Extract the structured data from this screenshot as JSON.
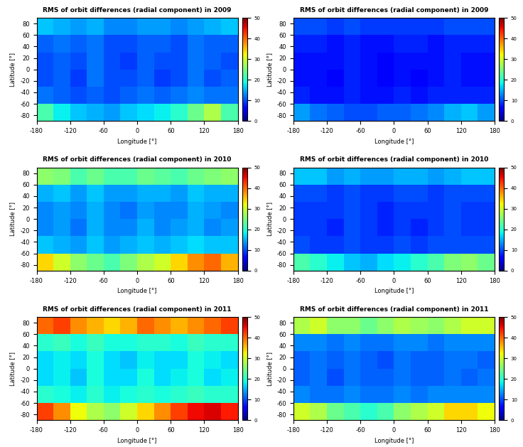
{
  "chart_data": [
    {
      "type": "heatmap",
      "title": "RMS of orbit differences (radial component) in 2009",
      "x_label": "Longitude [°]",
      "y_label": "Latitude [°]",
      "xlim": [
        -180,
        180
      ],
      "xticks": [
        -180,
        -120,
        -60,
        0,
        60,
        120,
        180
      ],
      "ylim": [
        -90,
        90
      ],
      "yticks": [
        -80,
        -60,
        -40,
        -20,
        0,
        20,
        40,
        60,
        80
      ],
      "x_edges": [
        -180,
        -150,
        -120,
        -90,
        -60,
        -30,
        0,
        30,
        60,
        90,
        120,
        150,
        180
      ],
      "y_edges": [
        -90,
        -60,
        -30,
        0,
        30,
        60,
        90
      ],
      "color": "jet",
      "cells": [
        [
          22,
          18,
          16,
          15,
          14,
          16,
          17,
          18,
          20,
          24,
          28,
          22
        ],
        [
          12,
          11,
          10,
          11,
          10,
          11,
          12,
          11,
          12,
          13,
          12,
          12
        ],
        [
          10,
          11,
          9,
          12,
          10,
          10,
          11,
          9,
          10,
          12,
          10,
          11
        ],
        [
          10,
          11,
          10,
          12,
          10,
          9,
          11,
          10,
          10,
          12,
          11,
          10
        ],
        [
          11,
          12,
          11,
          12,
          10,
          10,
          11,
          11,
          10,
          12,
          11,
          11
        ],
        [
          16,
          15,
          14,
          15,
          13,
          13,
          14,
          14,
          13,
          14,
          15,
          16
        ]
      ],
      "colorbar": {
        "range": [
          0,
          50
        ],
        "ticks": [
          0,
          10,
          20,
          30,
          40,
          50
        ]
      }
    },
    {
      "type": "heatmap",
      "title": "RMS of orbit differences (radial component) in 2009",
      "x_label": "Longitude [°]",
      "y_label": "Latitude [°]",
      "xlim": [
        -180,
        180
      ],
      "xticks": [
        -180,
        -120,
        -60,
        0,
        60,
        120,
        180
      ],
      "ylim": [
        -90,
        90
      ],
      "yticks": [
        -80,
        -60,
        -40,
        -20,
        0,
        20,
        40,
        60,
        80
      ],
      "x_edges": [
        -180,
        -150,
        -120,
        -90,
        -60,
        -30,
        0,
        30,
        60,
        90,
        120,
        150,
        180
      ],
      "y_edges": [
        -90,
        -60,
        -30,
        0,
        30,
        60,
        90
      ],
      "color": "jet",
      "cells": [
        [
          14,
          12,
          11,
          10,
          10,
          11,
          11,
          12,
          13,
          15,
          16,
          14
        ],
        [
          8,
          7,
          7,
          8,
          7,
          7,
          8,
          7,
          8,
          8,
          8,
          8
        ],
        [
          7,
          7,
          6,
          8,
          7,
          6,
          7,
          6,
          7,
          8,
          7,
          7
        ],
        [
          7,
          7,
          7,
          8,
          7,
          6,
          7,
          7,
          7,
          8,
          7,
          7
        ],
        [
          8,
          8,
          7,
          8,
          7,
          7,
          8,
          8,
          7,
          8,
          8,
          8
        ],
        [
          10,
          10,
          9,
          10,
          9,
          9,
          9,
          9,
          9,
          10,
          10,
          10
        ]
      ],
      "colorbar": {
        "range": [
          0,
          50
        ],
        "ticks": [
          0,
          10,
          20,
          30,
          40,
          50
        ]
      }
    },
    {
      "type": "heatmap",
      "title": "RMS of orbit differences (radial component) in 2010",
      "x_label": "Longitude [°]",
      "y_label": "Latitude [°]",
      "xlim": [
        -180,
        180
      ],
      "xticks": [
        -180,
        -120,
        -60,
        0,
        60,
        120,
        180
      ],
      "ylim": [
        -90,
        90
      ],
      "yticks": [
        -80,
        -60,
        -40,
        -20,
        0,
        20,
        40,
        60,
        80
      ],
      "x_edges": [
        -180,
        -150,
        -120,
        -90,
        -60,
        -30,
        0,
        30,
        60,
        90,
        120,
        150,
        180
      ],
      "y_edges": [
        -90,
        -60,
        -30,
        0,
        30,
        60,
        90
      ],
      "color": "jet",
      "cells": [
        [
          34,
          30,
          26,
          24,
          22,
          25,
          28,
          30,
          34,
          38,
          40,
          36
        ],
        [
          16,
          15,
          14,
          16,
          14,
          15,
          16,
          15,
          16,
          17,
          16,
          16
        ],
        [
          13,
          14,
          12,
          15,
          13,
          13,
          15,
          13,
          14,
          15,
          13,
          14
        ],
        [
          13,
          14,
          13,
          15,
          13,
          12,
          14,
          13,
          13,
          15,
          14,
          13
        ],
        [
          15,
          16,
          14,
          16,
          14,
          14,
          15,
          15,
          14,
          16,
          15,
          15
        ],
        [
          26,
          25,
          22,
          24,
          22,
          22,
          24,
          23,
          22,
          24,
          25,
          26
        ]
      ],
      "colorbar": {
        "range": [
          0,
          50
        ],
        "ticks": [
          0,
          10,
          20,
          30,
          40,
          50
        ]
      }
    },
    {
      "type": "heatmap",
      "title": "RMS of orbit differences (radial component) in 2010",
      "x_label": "Longitude [°]",
      "y_label": "Latitude [°]",
      "xlim": [
        -180,
        180
      ],
      "xticks": [
        -180,
        -120,
        -60,
        0,
        60,
        120,
        180
      ],
      "ylim": [
        -90,
        90
      ],
      "yticks": [
        -80,
        -60,
        -40,
        -20,
        0,
        20,
        40,
        60,
        80
      ],
      "x_edges": [
        -180,
        -150,
        -120,
        -90,
        -60,
        -30,
        0,
        30,
        60,
        90,
        120,
        150,
        180
      ],
      "y_edges": [
        -90,
        -60,
        -30,
        0,
        30,
        60,
        90
      ],
      "color": "jet",
      "cells": [
        [
          22,
          20,
          18,
          16,
          15,
          17,
          18,
          20,
          22,
          25,
          26,
          24
        ],
        [
          10,
          9,
          9,
          10,
          9,
          9,
          10,
          9,
          10,
          10,
          10,
          10
        ],
        [
          9,
          9,
          8,
          10,
          9,
          8,
          9,
          8,
          9,
          10,
          9,
          9
        ],
        [
          9,
          9,
          9,
          10,
          9,
          8,
          9,
          9,
          9,
          10,
          9,
          9
        ],
        [
          10,
          10,
          9,
          10,
          9,
          9,
          10,
          10,
          9,
          10,
          10,
          10
        ],
        [
          16,
          16,
          14,
          15,
          14,
          14,
          15,
          15,
          14,
          15,
          16,
          16
        ]
      ],
      "colorbar": {
        "range": [
          0,
          50
        ],
        "ticks": [
          0,
          10,
          20,
          30,
          40,
          50
        ]
      }
    },
    {
      "type": "heatmap",
      "title": "RMS of orbit differences (radial component) in 2011",
      "x_label": "Longitude [°]",
      "y_label": "Latitude [°]",
      "xlim": [
        -180,
        180
      ],
      "xticks": [
        -180,
        -120,
        -60,
        0,
        60,
        120,
        180
      ],
      "ylim": [
        -90,
        90
      ],
      "yticks": [
        -80,
        -60,
        -40,
        -20,
        0,
        20,
        40,
        60,
        80
      ],
      "x_edges": [
        -180,
        -150,
        -120,
        -90,
        -60,
        -30,
        0,
        30,
        60,
        90,
        120,
        150,
        180
      ],
      "y_edges": [
        -90,
        -60,
        -30,
        0,
        30,
        60,
        90
      ],
      "color": "jet",
      "cells": [
        [
          42,
          38,
          32,
          28,
          26,
          30,
          34,
          38,
          42,
          45,
          46,
          44
        ],
        [
          20,
          19,
          18,
          20,
          18,
          19,
          20,
          19,
          20,
          21,
          20,
          20
        ],
        [
          17,
          18,
          16,
          19,
          17,
          17,
          19,
          17,
          18,
          19,
          17,
          18
        ],
        [
          17,
          18,
          17,
          19,
          17,
          16,
          18,
          17,
          17,
          19,
          18,
          17
        ],
        [
          20,
          21,
          19,
          21,
          19,
          19,
          20,
          20,
          19,
          21,
          20,
          20
        ],
        [
          40,
          42,
          38,
          36,
          34,
          36,
          40,
          38,
          36,
          38,
          40,
          42
        ]
      ],
      "colorbar": {
        "range": [
          0,
          50
        ],
        "ticks": [
          0,
          10,
          20,
          30,
          40,
          50
        ]
      }
    },
    {
      "type": "heatmap",
      "title": "RMS of orbit differences (radial component) in 2011",
      "x_label": "Longitude [°]",
      "y_label": "Latitude [°]",
      "xlim": [
        -180,
        180
      ],
      "xticks": [
        -180,
        -120,
        -60,
        0,
        60,
        120,
        180
      ],
      "ylim": [
        -90,
        90
      ],
      "yticks": [
        -80,
        -60,
        -40,
        -20,
        0,
        20,
        40,
        60,
        80
      ],
      "x_edges": [
        -180,
        -150,
        -120,
        -90,
        -60,
        -30,
        0,
        30,
        60,
        90,
        120,
        150,
        180
      ],
      "y_edges": [
        -90,
        -60,
        -30,
        0,
        30,
        60,
        90
      ],
      "color": "jet",
      "cells": [
        [
          30,
          28,
          24,
          22,
          20,
          22,
          26,
          28,
          30,
          34,
          34,
          32
        ],
        [
          13,
          12,
          12,
          13,
          12,
          12,
          13,
          12,
          13,
          13,
          13,
          13
        ],
        [
          11,
          12,
          10,
          12,
          11,
          11,
          12,
          11,
          11,
          12,
          11,
          12
        ],
        [
          11,
          12,
          11,
          12,
          11,
          10,
          12,
          11,
          11,
          12,
          12,
          11
        ],
        [
          13,
          13,
          12,
          13,
          12,
          12,
          13,
          13,
          12,
          13,
          13,
          13
        ],
        [
          28,
          30,
          26,
          26,
          24,
          26,
          28,
          27,
          26,
          28,
          30,
          30
        ]
      ],
      "colorbar": {
        "range": [
          0,
          50
        ],
        "ticks": [
          0,
          10,
          20,
          30,
          40,
          50
        ]
      }
    }
  ]
}
